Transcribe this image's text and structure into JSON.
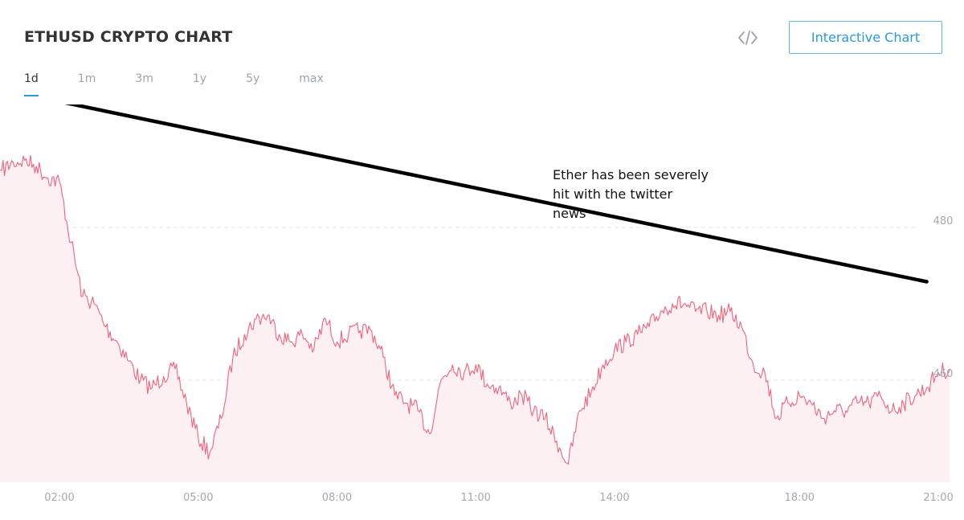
{
  "header": {
    "title": "ETHUSD CRYPTO CHART",
    "embed_icon": "code-brackets-icon",
    "interactive_button_label": "Interactive Chart"
  },
  "tabs": [
    {
      "label": "1d",
      "active": true
    },
    {
      "label": "1m",
      "active": false
    },
    {
      "label": "3m",
      "active": false
    },
    {
      "label": "1y",
      "active": false
    },
    {
      "label": "5y",
      "active": false
    },
    {
      "label": "max",
      "active": false
    }
  ],
  "colors": {
    "line": "#f0637c",
    "area": "#fdf0f2",
    "accent": "#2a9ad8",
    "trend": "#000000"
  },
  "annotation": {
    "lines": [
      "Ether has been severely",
      "hit with the twitter",
      "news"
    ]
  },
  "chart_data": {
    "type": "area",
    "title": "",
    "xlabel": "",
    "ylabel": "",
    "x_ticks": [
      "02:00",
      "05:00",
      "08:00",
      "11:00",
      "14:00",
      "18:00",
      "21:00"
    ],
    "y_ticks": [
      480,
      460
    ],
    "ylim": [
      447,
      490
    ],
    "grid": "horizontal dashed",
    "series": [
      {
        "x": [
          "00:45",
          "01:00",
          "01:15",
          "01:30",
          "01:45",
          "02:00",
          "02:15",
          "02:30",
          "02:45",
          "03:00",
          "03:15",
          "03:30",
          "03:45",
          "04:00",
          "04:15",
          "04:30",
          "04:45",
          "05:00",
          "05:15",
          "05:30",
          "05:45",
          "06:00",
          "06:15",
          "06:30",
          "06:45",
          "07:00",
          "07:15",
          "07:30",
          "07:45",
          "08:00",
          "08:15",
          "08:30",
          "08:45",
          "09:00",
          "09:15",
          "09:30",
          "09:45",
          "10:00",
          "10:15",
          "10:30",
          "10:45",
          "11:00",
          "11:15",
          "11:30",
          "11:45",
          "12:00",
          "12:15",
          "12:30",
          "12:45",
          "13:00",
          "13:15",
          "13:30",
          "13:45",
          "14:00",
          "14:15",
          "14:30",
          "14:45",
          "15:00",
          "15:15",
          "15:30",
          "15:45",
          "16:00",
          "16:15",
          "16:30",
          "16:45",
          "17:00",
          "17:15",
          "17:30",
          "17:45",
          "18:00",
          "18:15",
          "18:30",
          "18:45",
          "19:00",
          "19:15",
          "19:30",
          "19:45",
          "20:00",
          "20:15",
          "20:30",
          "20:45",
          "21:00",
          "21:15"
        ],
        "values": [
          487.5,
          488.5,
          488.8,
          488.0,
          486.5,
          486.0,
          478.0,
          471.0,
          470.0,
          467.0,
          465.0,
          462.5,
          460.0,
          459.0,
          460.5,
          461.5,
          457.0,
          452.5,
          450.5,
          455.0,
          463.0,
          466.0,
          468.0,
          468.5,
          466.0,
          465.0,
          466.0,
          464.0,
          468.0,
          465.0,
          466.0,
          466.5,
          466.5,
          463.0,
          458.0,
          457.0,
          456.0,
          453.0,
          460.0,
          462.0,
          461.0,
          462.0,
          459.5,
          459.0,
          457.0,
          458.0,
          456.0,
          455.0,
          452.0,
          449.0,
          456.0,
          458.5,
          462.0,
          464.0,
          465.0,
          466.0,
          467.0,
          469.0,
          470.0,
          470.0,
          469.0,
          469.0,
          468.5,
          469.0,
          467.0,
          462.0,
          461.0,
          455.0,
          457.0,
          458.0,
          457.0,
          455.0,
          456.0,
          456.0,
          457.0,
          457.0,
          458.0,
          456.0,
          457.0,
          458.0,
          459.0,
          461.0,
          461.5
        ]
      }
    ],
    "trendline": {
      "x": [
        "01:45",
        "20:45"
      ],
      "values": [
        496.8,
        472.9
      ]
    }
  }
}
